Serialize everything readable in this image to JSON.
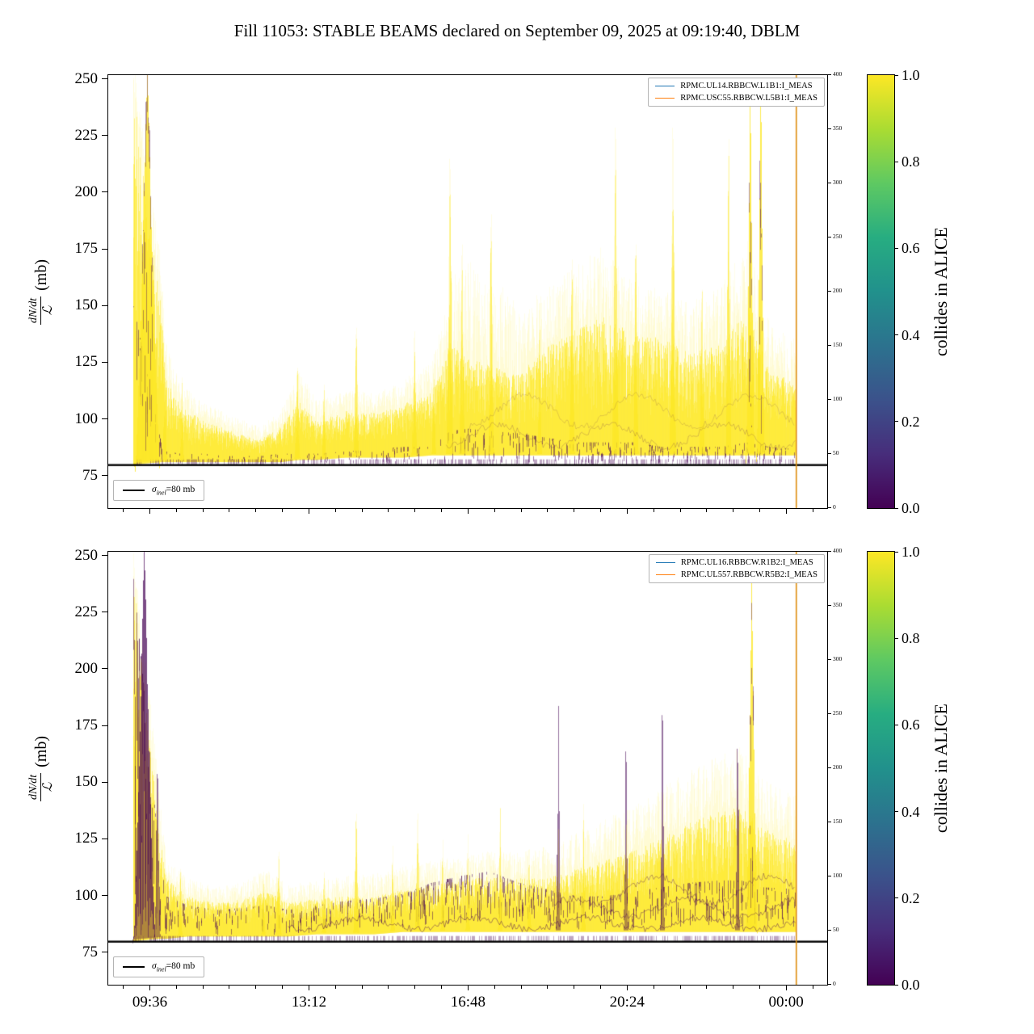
{
  "title": "Fill 11053: STABLE BEAMS declared on September 09, 2025 at 09:19:40, DBLM",
  "colors": {
    "yellow": "#fde725",
    "dark": "#440154",
    "hline": "#000000",
    "vline": "#dd8d0e",
    "legend_blue": "#1f77b4",
    "legend_orange": "#ff7f0e",
    "viridis": [
      "#440154",
      "#472d7b",
      "#3b528b",
      "#2c728e",
      "#21918c",
      "#27ad81",
      "#5ec962",
      "#aadc32",
      "#fde725"
    ]
  },
  "chart_data": [
    {
      "type": "heatmap",
      "title": "",
      "xlabel": "",
      "ylabel": {
        "num": "dN/dt",
        "den": "ℒ",
        "unit": "(mb)"
      },
      "ylim": [
        61,
        252
      ],
      "yticks": [
        75,
        100,
        125,
        150,
        175,
        200,
        225,
        250
      ],
      "right_ticks": [
        0,
        50,
        100,
        150,
        200,
        250,
        300,
        350,
        400
      ],
      "xticks": [
        {
          "label": "09:36",
          "t": 0.059
        },
        {
          "label": "13:12",
          "t": 0.2803
        },
        {
          "label": "16:48",
          "t": 0.5015
        },
        {
          "label": "20:24",
          "t": 0.7228
        },
        {
          "label": "00:00",
          "t": 0.944
        }
      ],
      "legend": [
        {
          "label": "RPMC.UL14.RBBCW.L1B1:I_MEAS",
          "color": "#1f77b4"
        },
        {
          "label": "RPMC.USC55.RBBCW.L5B1:I_MEAS",
          "color": "#ff7f0e"
        }
      ],
      "sigma": {
        "symbol": "σ",
        "sub": "inel",
        "rest": "=80 mb"
      },
      "hline": 80,
      "vline_t": 0.957,
      "colorbar": {
        "label": "collides in ALICE",
        "ticks": [
          0,
          0.2,
          0.4,
          0.6,
          0.8,
          1
        ]
      },
      "data_range": [
        0.035,
        0.956
      ],
      "band": [
        [
          0.035,
          81,
          245,
          258,
          0.5,
          80,
          150
        ],
        [
          0.073,
          82,
          150,
          170,
          0.35,
          80,
          90
        ],
        [
          0.08,
          82,
          118,
          135,
          0.3,
          80,
          86
        ],
        [
          0.1,
          82,
          106,
          116,
          0.25,
          80,
          85
        ],
        [
          0.13,
          82,
          100,
          108,
          0.2,
          80,
          85
        ],
        [
          0.17,
          82,
          95,
          102,
          0.2,
          80,
          84
        ],
        [
          0.21,
          82,
          91,
          97,
          0.2,
          80,
          84
        ],
        [
          0.24,
          82,
          97,
          104,
          0.25,
          80,
          85
        ],
        [
          0.265,
          83,
          108,
          122,
          0.25,
          80,
          85
        ],
        [
          0.29,
          83,
          99,
          108,
          0.2,
          80,
          85
        ],
        [
          0.33,
          84,
          104,
          113,
          0.25,
          80,
          86
        ],
        [
          0.37,
          84,
          103,
          112,
          0.3,
          80,
          87
        ],
        [
          0.41,
          84,
          107,
          118,
          0.3,
          80,
          88
        ],
        [
          0.45,
          85,
          112,
          125,
          0.3,
          80,
          88
        ],
        [
          0.475,
          85,
          133,
          162,
          0.35,
          80,
          95
        ],
        [
          0.5,
          85,
          128,
          170,
          0.35,
          80,
          96
        ],
        [
          0.53,
          85,
          124,
          166,
          0.35,
          80,
          95
        ],
        [
          0.57,
          85,
          120,
          150,
          0.35,
          80,
          94
        ],
        [
          0.61,
          85,
          132,
          158,
          0.4,
          80,
          92
        ],
        [
          0.65,
          85,
          140,
          168,
          0.45,
          80,
          90
        ],
        [
          0.69,
          85,
          146,
          178,
          0.5,
          80,
          90
        ],
        [
          0.73,
          85,
          138,
          162,
          0.5,
          80,
          90
        ],
        [
          0.77,
          85,
          136,
          158,
          0.45,
          80,
          88
        ],
        [
          0.81,
          85,
          130,
          152,
          0.4,
          80,
          88
        ],
        [
          0.85,
          85,
          133,
          158,
          0.4,
          80,
          88
        ],
        [
          0.89,
          85,
          150,
          180,
          0.4,
          80,
          90
        ],
        [
          0.92,
          85,
          122,
          142,
          0.35,
          80,
          88
        ],
        [
          0.956,
          85,
          116,
          136,
          0.3,
          80,
          87
        ]
      ],
      "spikes": [
        [
          0.054,
          262,
          0.018,
          2
        ],
        [
          0.078,
          140,
          0.003,
          0
        ],
        [
          0.102,
          126,
          0.003,
          0
        ],
        [
          0.262,
          131,
          0.004,
          0
        ],
        [
          0.3,
          122,
          0.003,
          0
        ],
        [
          0.345,
          152,
          0.004,
          0
        ],
        [
          0.425,
          150,
          0.004,
          0
        ],
        [
          0.452,
          138,
          0.003,
          0
        ],
        [
          0.475,
          236,
          0.005,
          0
        ],
        [
          0.492,
          196,
          0.004,
          0
        ],
        [
          0.532,
          212,
          0.004,
          0
        ],
        [
          0.6,
          165,
          0.003,
          0
        ],
        [
          0.645,
          188,
          0.004,
          0
        ],
        [
          0.705,
          252,
          0.005,
          0
        ],
        [
          0.733,
          196,
          0.004,
          0
        ],
        [
          0.785,
          252,
          0.005,
          0
        ],
        [
          0.825,
          172,
          0.004,
          0
        ],
        [
          0.862,
          252,
          0.004,
          0
        ],
        [
          0.893,
          262,
          0.006,
          2
        ],
        [
          0.907,
          262,
          0.006,
          2
        ]
      ],
      "dark_lines": [
        [
          93,
          5,
          0.47,
          0.956,
          0.2
        ],
        [
          104,
          7,
          0.5,
          0.956,
          0.15
        ]
      ]
    },
    {
      "type": "heatmap",
      "title": "",
      "xlabel": "",
      "ylabel": {
        "num": "dN/dt",
        "den": "ℒ",
        "unit": "(mb)"
      },
      "ylim": [
        61,
        252
      ],
      "yticks": [
        75,
        100,
        125,
        150,
        175,
        200,
        225,
        250
      ],
      "right_ticks": [
        0,
        50,
        100,
        150,
        200,
        250,
        300,
        350,
        400
      ],
      "xticks": [
        {
          "label": "09:36",
          "t": 0.059
        },
        {
          "label": "13:12",
          "t": 0.2803
        },
        {
          "label": "16:48",
          "t": 0.5015
        },
        {
          "label": "20:24",
          "t": 0.7228
        },
        {
          "label": "00:00",
          "t": 0.944
        }
      ],
      "legend": [
        {
          "label": "RPMC.UL16.RBBCW.R1B2:I_MEAS",
          "color": "#1f77b4"
        },
        {
          "label": "RPMC.UL557.RBBCW.R5B2:I_MEAS",
          "color": "#ff7f0e"
        }
      ],
      "sigma": {
        "symbol": "σ",
        "sub": "inel",
        "rest": "=80 mb"
      },
      "hline": 80,
      "vline_t": 0.957,
      "colorbar": {
        "label": "collides in ALICE",
        "ticks": [
          0,
          0.2,
          0.4,
          0.6,
          0.8,
          1
        ]
      },
      "data_range": [
        0.035,
        0.956
      ],
      "band": [
        [
          0.035,
          81,
          240,
          255,
          0.85,
          80,
          240
        ],
        [
          0.07,
          82,
          130,
          150,
          0.6,
          82,
          120
        ],
        [
          0.08,
          82,
          108,
          118,
          0.45,
          82,
          100
        ],
        [
          0.11,
          83,
          100,
          108,
          0.4,
          83,
          96
        ],
        [
          0.15,
          83,
          97,
          104,
          0.35,
          83,
          94
        ],
        [
          0.19,
          83,
          99,
          107,
          0.35,
          83,
          95
        ],
        [
          0.22,
          83,
          103,
          112,
          0.35,
          83,
          96
        ],
        [
          0.25,
          83,
          97,
          105,
          0.35,
          83,
          94
        ],
        [
          0.29,
          84,
          99,
          107,
          0.4,
          84,
          96
        ],
        [
          0.33,
          84,
          100,
          109,
          0.45,
          85,
          98
        ],
        [
          0.37,
          84,
          100,
          110,
          0.45,
          85,
          99
        ],
        [
          0.41,
          85,
          103,
          113,
          0.5,
          85,
          101
        ],
        [
          0.45,
          85,
          105,
          116,
          0.55,
          87,
          106
        ],
        [
          0.49,
          85,
          107,
          118,
          0.6,
          88,
          109
        ],
        [
          0.53,
          85,
          109,
          120,
          0.6,
          89,
          111
        ],
        [
          0.57,
          85,
          108,
          120,
          0.55,
          87,
          106
        ],
        [
          0.61,
          85,
          108,
          122,
          0.5,
          86,
          103
        ],
        [
          0.65,
          85,
          112,
          128,
          0.45,
          85,
          100
        ],
        [
          0.69,
          85,
          116,
          134,
          0.45,
          85,
          100
        ],
        [
          0.73,
          85,
          120,
          140,
          0.45,
          85,
          102
        ],
        [
          0.77,
          85,
          126,
          148,
          0.45,
          86,
          104
        ],
        [
          0.81,
          85,
          133,
          156,
          0.45,
          86,
          106
        ],
        [
          0.85,
          85,
          138,
          162,
          0.45,
          87,
          107
        ],
        [
          0.88,
          85,
          140,
          166,
          0.45,
          87,
          107
        ],
        [
          0.91,
          85,
          130,
          152,
          0.45,
          86,
          104
        ],
        [
          0.956,
          85,
          124,
          146,
          0.45,
          86,
          103
        ]
      ],
      "spikes": [
        [
          0.05,
          262,
          0.016,
          3
        ],
        [
          0.068,
          200,
          0.004,
          1
        ],
        [
          0.1,
          118,
          0.003,
          0
        ],
        [
          0.215,
          112,
          0.003,
          0
        ],
        [
          0.237,
          127,
          0.004,
          0
        ],
        [
          0.3,
          116,
          0.003,
          0
        ],
        [
          0.345,
          147,
          0.004,
          0
        ],
        [
          0.395,
          130,
          0.003,
          0
        ],
        [
          0.43,
          147,
          0.004,
          0
        ],
        [
          0.465,
          133,
          0.003,
          0
        ],
        [
          0.5,
          136,
          0.003,
          0
        ],
        [
          0.545,
          150,
          0.003,
          0
        ],
        [
          0.585,
          128,
          0.003,
          0
        ],
        [
          0.625,
          232,
          0.003,
          1
        ],
        [
          0.66,
          152,
          0.003,
          0
        ],
        [
          0.72,
          216,
          0.003,
          1
        ],
        [
          0.77,
          232,
          0.003,
          1
        ],
        [
          0.875,
          237,
          0.003,
          1
        ],
        [
          0.895,
          252,
          0.008,
          2
        ]
      ],
      "dark_lines": [
        [
          88,
          2.5,
          0.25,
          0.956,
          0.45
        ],
        [
          95,
          4,
          0.62,
          0.956,
          0.4
        ],
        [
          103,
          6,
          0.68,
          0.956,
          0.35
        ]
      ]
    }
  ]
}
